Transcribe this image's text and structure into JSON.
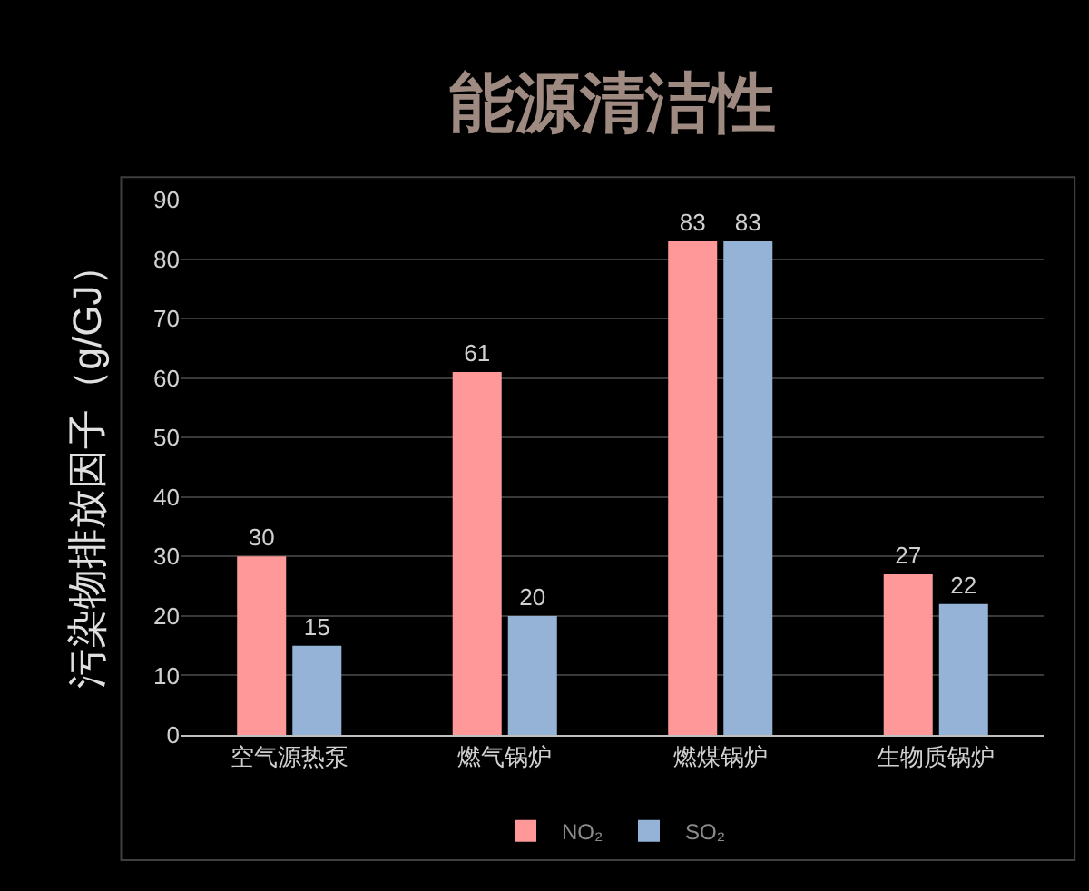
{
  "chart_data": {
    "type": "bar",
    "title": "能源清洁性",
    "ylabel": "污染物排放因子（g/GJ）",
    "categories": [
      "空气源热泵",
      "燃气锅炉",
      "燃煤锅炉",
      "生物质锅炉"
    ],
    "series": [
      {
        "name": "NO₂",
        "color": "#ff9999",
        "values": [
          30,
          61,
          83,
          27
        ]
      },
      {
        "name": "SO₂",
        "color": "#95b3d7",
        "values": [
          15,
          20,
          83,
          22
        ]
      }
    ],
    "ylim": [
      0,
      90
    ],
    "yticks": [
      0,
      10,
      20,
      30,
      40,
      50,
      60,
      70,
      80,
      90
    ],
    "grid": "y",
    "legend": "bottom",
    "data_labels": true
  }
}
